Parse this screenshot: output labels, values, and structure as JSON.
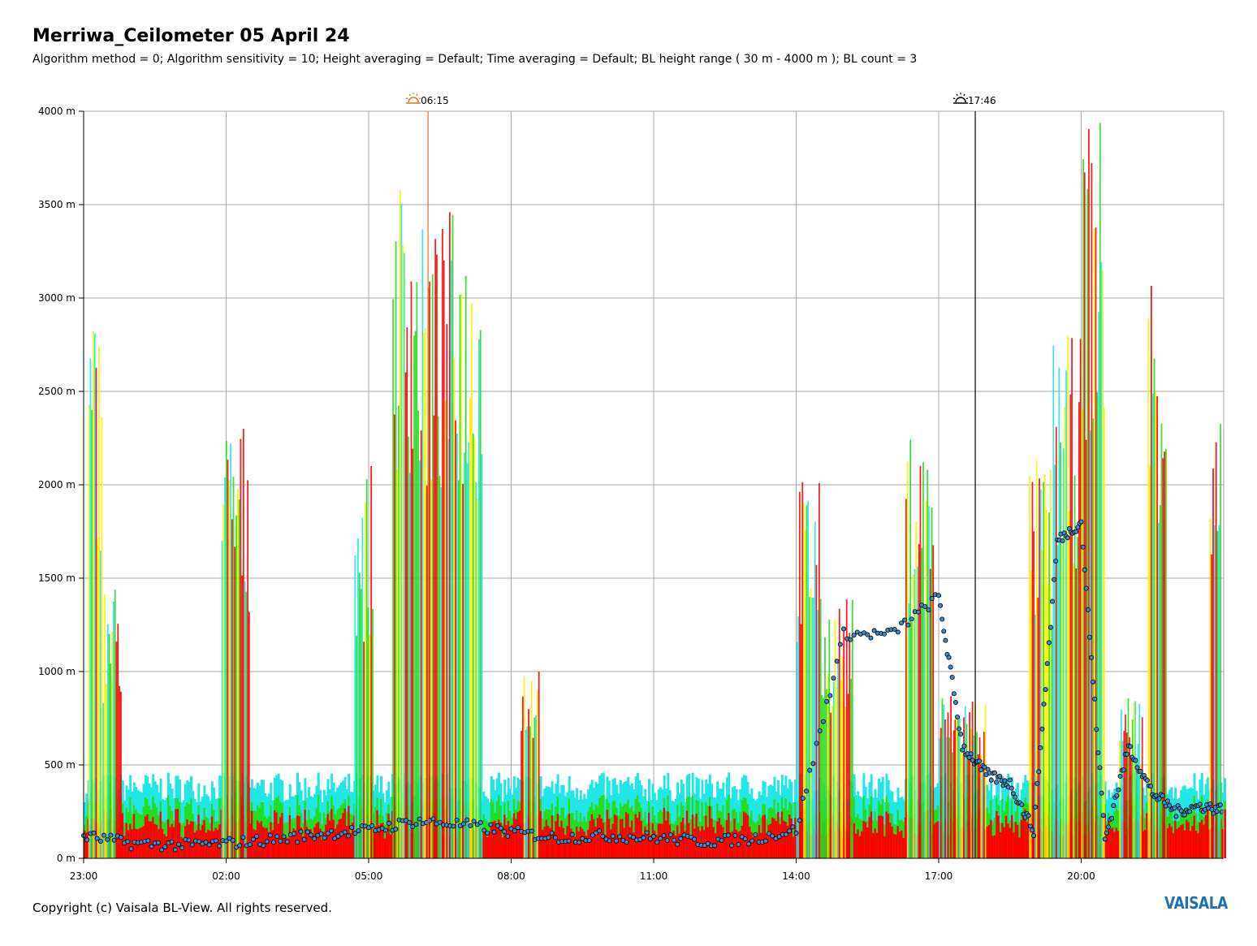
{
  "title": "Merriwa_Ceilometer 05 April 24",
  "subtitle": "Algorithm method = 0; Algorithm sensitivity = 10; Height averaging = Default; Time averaging = Default; BL height range ( 30 m - 4000 m ); BL count = 3",
  "copyright": "Copyright (c) Vaisala BL-View. All rights reserved.",
  "brand": "VAISALA",
  "colors": {
    "brand": "#1f6fb5",
    "backscatter_low": "#22e6e6",
    "backscatter_mid": "#22dd22",
    "backscatter_high": "#ffee00",
    "backscatter_max": "#ff0000",
    "bl_marker": "#3a8ccc",
    "sunrise_icon": "#e07020",
    "sunset_icon": "#000000",
    "grid": "#a8a8a8"
  },
  "chart_data": {
    "type": "heatmap",
    "title": "Merriwa_Ceilometer 05 April 24",
    "xlabel": "",
    "ylabel": "",
    "x_ticks": [
      "23:00",
      "02:00",
      "05:00",
      "08:00",
      "11:00",
      "14:00",
      "17:00",
      "20:00"
    ],
    "y_ticks": [
      "0 m",
      "500 m",
      "1000 m",
      "1500 m",
      "2000 m",
      "2500 m",
      "3000 m",
      "3500 m",
      "4000 m"
    ],
    "x_range_hours": [
      23.0,
      47.0
    ],
    "ylim": [
      0,
      4000
    ],
    "grid": true,
    "events": [
      {
        "label": "06:15",
        "type": "sunrise",
        "hour": 30.25,
        "icon": "sunrise-icon"
      },
      {
        "label": "17:46",
        "type": "sunset",
        "hour": 41.77,
        "icon": "sunset-icon"
      }
    ],
    "backscatter_columns": [
      {
        "from": 23.1,
        "to": 23.4,
        "top": 2950
      },
      {
        "from": 23.4,
        "to": 23.8,
        "top": 1500
      },
      {
        "from": 25.9,
        "to": 26.5,
        "top": 2350
      },
      {
        "from": 28.7,
        "to": 29.1,
        "top": 2100
      },
      {
        "from": 29.5,
        "to": 30.0,
        "top": 3700
      },
      {
        "from": 30.0,
        "to": 30.6,
        "top": 3400
      },
      {
        "from": 30.6,
        "to": 31.0,
        "top": 3500
      },
      {
        "from": 31.0,
        "to": 31.4,
        "top": 3400
      },
      {
        "from": 32.2,
        "to": 32.6,
        "top": 1100
      },
      {
        "from": 38.0,
        "to": 38.5,
        "top": 2050
      },
      {
        "from": 38.5,
        "to": 39.2,
        "top": 1400
      },
      {
        "from": 40.3,
        "to": 40.9,
        "top": 2300
      },
      {
        "from": 41.0,
        "to": 42.0,
        "top": 900
      },
      {
        "from": 42.9,
        "to": 43.4,
        "top": 2150
      },
      {
        "from": 43.4,
        "to": 44.0,
        "top": 2800
      },
      {
        "from": 44.0,
        "to": 44.5,
        "top": 4000
      },
      {
        "from": 44.8,
        "to": 45.3,
        "top": 900
      },
      {
        "from": 45.4,
        "to": 45.8,
        "top": 3250
      },
      {
        "from": 46.7,
        "to": 46.95,
        "top": 2400
      }
    ],
    "boundary_layer_height": {
      "x_hours": [
        23.0,
        24.0,
        25.0,
        26.0,
        27.0,
        28.0,
        29.0,
        30.0,
        31.0,
        32.0,
        33.0,
        34.0,
        35.0,
        36.0,
        37.0,
        38.0,
        39.0,
        40.0,
        41.0,
        41.5,
        42.0,
        42.5,
        43.0,
        43.5,
        44.0,
        44.5,
        45.0,
        45.5,
        46.0,
        46.5,
        47.0
      ],
      "heights_m": [
        120,
        80,
        70,
        80,
        100,
        130,
        150,
        200,
        180,
        140,
        110,
        120,
        110,
        90,
        100,
        150,
        1200,
        1200,
        1400,
        600,
        450,
        400,
        150,
        1700,
        1800,
        100,
        600,
        350,
        250,
        280,
        260
      ]
    }
  }
}
